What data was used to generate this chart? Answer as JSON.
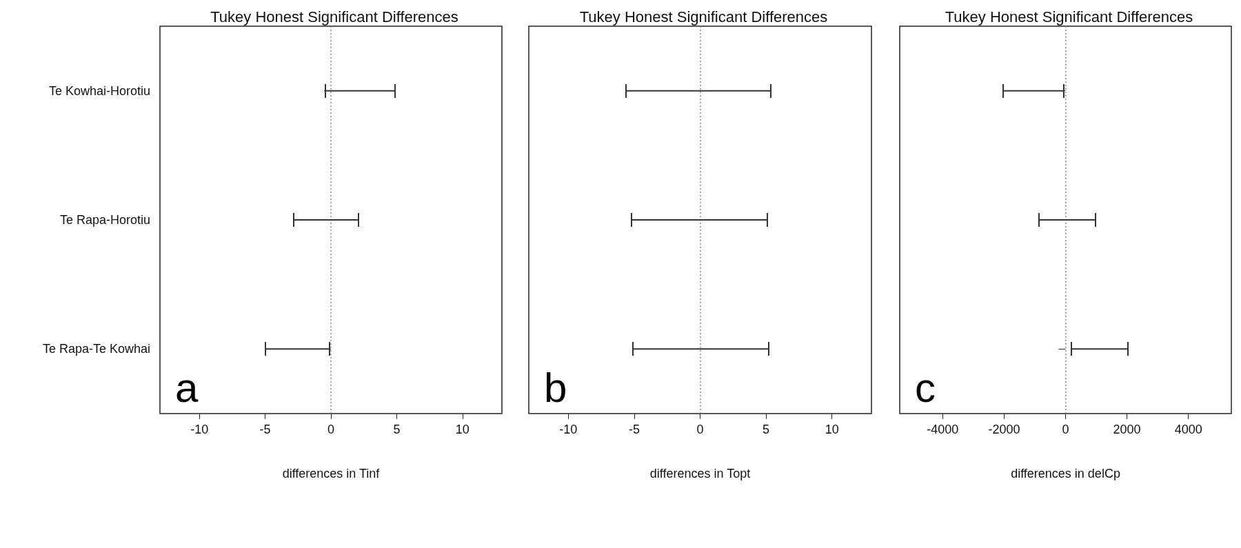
{
  "chart_data": [
    {
      "type": "bar",
      "orientation": "horizontal",
      "title": "Tukey Honest Significant Differences",
      "xlabel": "differences in Tinf",
      "categories": [
        "Te Kowhai-Horotiu",
        "Te Rapa-Horotiu",
        "Te Rapa-Te Kowhai"
      ],
      "color": "#333333",
      "base": [
        -0.4,
        -2.85,
        -5.0
      ],
      "values": [
        5.26,
        4.95,
        4.88
      ],
      "xlim": [
        -13,
        13
      ],
      "xticks": [
        -10,
        -5,
        0,
        5,
        10
      ],
      "grid": false,
      "ref_lines": [
        {
          "axis": "x",
          "value": 0,
          "color": "#888888",
          "line_style": "dotted"
        }
      ],
      "annotations": [
        "a"
      ]
    },
    {
      "type": "bar",
      "orientation": "horizontal",
      "title": "Tukey Honest Significant Differences",
      "xlabel": "differences in Topt",
      "categories": [
        null,
        null,
        null
      ],
      "color": "#333333",
      "base": [
        -5.6,
        -5.2,
        -5.1
      ],
      "values": [
        10.98,
        10.29,
        10.29
      ],
      "xlim": [
        -13,
        13
      ],
      "xticks": [
        -10,
        -5,
        0,
        5,
        10
      ],
      "grid": false,
      "ref_lines": [
        {
          "axis": "x",
          "value": 0,
          "color": "#888888",
          "line_style": "dotted"
        }
      ],
      "annotations": [
        "b"
      ]
    },
    {
      "type": "bar",
      "orientation": "horizontal",
      "title": "Tukey Honest Significant Differences",
      "xlabel": "differences in delCp",
      "categories": [
        null,
        null,
        null
      ],
      "color": "#333333",
      "base": [
        -2030,
        -870,
        180
      ],
      "values": [
        1970,
        1850,
        1850
      ],
      "xlim": [
        -5400,
        5400
      ],
      "xticks": [
        -4000,
        -2000,
        0,
        2000,
        4000
      ],
      "grid": false,
      "ref_lines": [
        {
          "axis": "x",
          "value": 0,
          "color": "#888888",
          "line_style": "dotted"
        }
      ],
      "annotations": [
        "c"
      ]
    }
  ]
}
